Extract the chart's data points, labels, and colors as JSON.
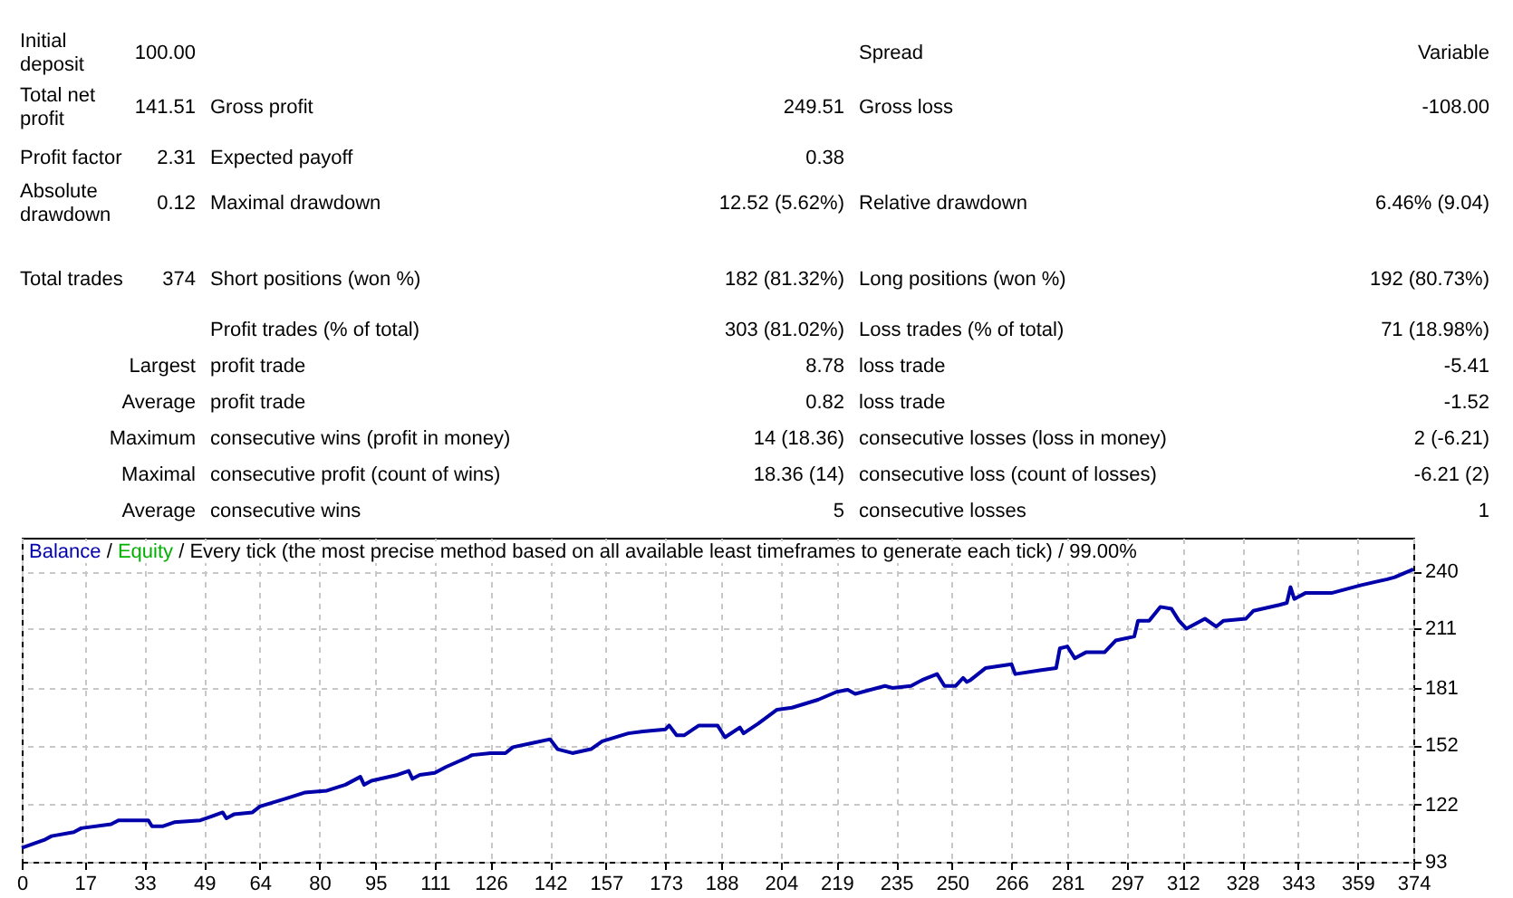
{
  "chart_data": [
    {
      "type": "other",
      "annotations": [
        "Initial deposit",
        "100.00",
        "Spread",
        "Variable",
        "Total net profit",
        "141.51",
        "Gross profit",
        "249.51",
        "Gross loss",
        "-108.00",
        "Profit factor",
        "2.31",
        "Expected payoff",
        "0.38",
        "Absolute drawdown",
        "0.12",
        "Maximal drawdown",
        "12.52 (5.62%)",
        "Relative drawdown",
        "6.46% (9.04)",
        "Total trades",
        "374",
        "Short positions (won %)",
        "182 (81.32%)",
        "Long positions (won %)",
        "192 (80.73%)",
        "Profit trades (% of total)",
        "303 (81.02%)",
        "Loss trades (% of total)",
        "71 (18.98%)",
        "Largest",
        "profit trade",
        "8.78",
        "loss trade",
        "-5.41",
        "Average",
        "profit trade",
        "0.82",
        "loss trade",
        "-1.52",
        "Maximum",
        "consecutive wins (profit in money)",
        "14 (18.36)",
        "consecutive losses (loss in money)",
        "2 (-6.21)",
        "Maximal",
        "consecutive profit (count of wins)",
        "18.36 (14)",
        "consecutive loss (count of losses)",
        "-6.21 (2)",
        "Average",
        "consecutive wins",
        "5",
        "consecutive losses",
        "1"
      ]
    },
    {
      "type": "line",
      "annotations": [
        "/"
      ],
      "subtitle": "/ Every tick (the most precise method based on all available least timeframes to generate each tick) / 99.00%",
      "x": [
        0,
        6,
        8,
        14,
        16,
        24,
        26,
        34,
        35,
        38,
        41,
        48,
        51,
        54,
        55,
        57,
        62,
        64,
        71,
        76,
        82,
        87,
        91,
        92,
        94,
        101,
        104,
        105,
        107,
        111,
        114,
        120,
        121,
        126,
        130,
        132,
        137,
        142,
        144,
        148,
        153,
        156,
        163,
        167,
        173,
        174,
        176,
        178,
        182,
        187,
        189,
        193,
        194,
        198,
        203,
        207,
        214,
        219,
        222,
        224,
        232,
        234,
        239,
        242,
        246,
        248,
        251,
        253,
        254,
        255,
        259,
        266,
        267,
        274,
        278,
        279,
        281,
        283,
        286,
        291,
        294,
        299,
        300,
        303,
        306,
        309,
        311,
        313,
        318,
        321,
        323,
        329,
        331,
        338,
        340,
        341,
        342,
        345,
        352,
        360,
        367,
        369,
        374
      ],
      "series": [
        {
          "name": "Balance",
          "color": "#0000aa",
          "values": [
            100,
            104,
            106,
            108,
            110,
            112,
            114,
            114,
            111,
            111,
            113,
            114,
            116,
            118,
            115,
            117,
            118,
            121,
            125,
            128,
            129,
            132,
            136,
            132,
            134,
            137,
            139,
            135,
            137,
            138,
            141,
            146,
            147,
            148,
            148,
            151,
            153,
            155,
            150,
            148,
            150,
            154,
            158,
            159,
            160,
            162,
            157,
            157,
            162,
            162,
            156,
            161,
            158,
            163,
            170,
            171,
            175,
            179,
            180,
            178,
            182,
            181,
            182,
            185,
            188,
            182,
            182,
            186,
            184,
            185,
            191,
            193,
            188,
            190,
            191,
            201,
            202,
            196,
            199,
            199,
            205,
            207,
            215,
            215,
            222,
            221,
            215,
            211,
            216,
            212,
            215,
            216,
            220,
            223,
            224,
            232,
            226,
            229,
            229,
            233,
            236,
            237,
            241
          ]
        },
        {
          "name": "Equity",
          "color": "#00b000",
          "values": [
            null,
            null,
            null,
            null,
            null,
            null,
            null,
            null,
            null,
            null,
            null,
            null,
            null,
            null,
            null,
            null,
            null,
            null,
            null,
            null,
            null,
            null,
            null,
            null,
            null,
            null,
            null,
            null,
            null,
            null,
            null,
            null,
            null,
            null,
            null,
            null,
            null,
            null,
            null,
            null,
            null,
            null,
            null,
            null,
            null,
            null,
            null,
            null,
            null,
            null,
            null,
            null,
            null,
            null,
            null,
            null,
            null,
            null,
            null,
            null,
            null,
            null,
            null,
            null,
            null,
            null,
            null,
            null,
            null,
            null,
            null,
            null,
            null,
            null,
            null,
            null,
            null,
            null,
            null,
            null,
            null,
            null,
            null,
            null,
            null,
            null,
            null,
            null,
            null,
            null,
            null,
            null,
            null,
            null,
            null,
            null,
            null,
            null,
            null,
            null,
            null,
            null,
            null
          ]
        }
      ],
      "xlim": [
        0,
        374
      ],
      "xticks": [
        0,
        17,
        33,
        49,
        64,
        80,
        95,
        111,
        126,
        142,
        157,
        173,
        188,
        204,
        219,
        235,
        250,
        266,
        281,
        297,
        312,
        328,
        343,
        359,
        374
      ],
      "ylim": [
        93,
        257
      ],
      "yticks": [
        93,
        122,
        152,
        181,
        211,
        240
      ],
      "grid": true,
      "legend": "top left"
    }
  ]
}
